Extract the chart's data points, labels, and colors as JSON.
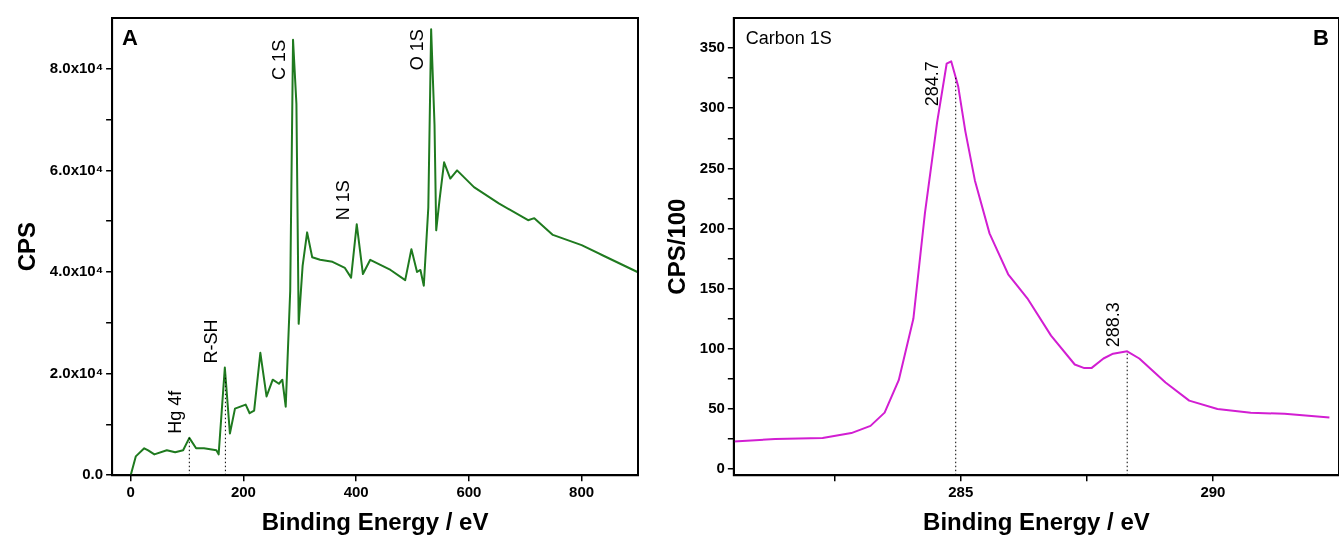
{
  "chart_data": [
    {
      "type": "line",
      "title": "A",
      "xlabel": "Binding Energy / eV",
      "ylabel": "CPS",
      "xlim": [
        -33,
        900
      ],
      "ylim": [
        0,
        90000
      ],
      "xticks": [
        0,
        200,
        400,
        600,
        800
      ],
      "yticks": [
        {
          "value": 0,
          "label": "0.0"
        },
        {
          "value": 10000,
          "label": null
        },
        {
          "value": 20000,
          "label": "2.0x10⁴"
        },
        {
          "value": 30000,
          "label": null
        },
        {
          "value": 40000,
          "label": "4.0x10⁴"
        },
        {
          "value": 50000,
          "label": null
        },
        {
          "value": 60000,
          "label": "6.0x10⁴"
        },
        {
          "value": 70000,
          "label": null
        },
        {
          "value": 80000,
          "label": "8.0x10⁴"
        }
      ],
      "series": [
        {
          "color": "#1f7a1f",
          "x": [
            0,
            9,
            24,
            31,
            42,
            64,
            79,
            93,
            104,
            116,
            130,
            152,
            156,
            167,
            176,
            185,
            204,
            211,
            219,
            230,
            241,
            252,
            263,
            269,
            275,
            283,
            288,
            294,
            298,
            305,
            313,
            322,
            336,
            358,
            380,
            391,
            401,
            412,
            425,
            461,
            487,
            498,
            508,
            514,
            520,
            528,
            533,
            539,
            542,
            548,
            556,
            567,
            579,
            609,
            653,
            705,
            716,
            749,
            800,
            837,
            899
          ],
          "values": [
            0,
            3700,
            5300,
            4900,
            4100,
            4900,
            4500,
            4900,
            7350,
            5300,
            5300,
            4900,
            4100,
            21200,
            8200,
            13100,
            13900,
            12200,
            12700,
            24100,
            15500,
            18800,
            18000,
            18800,
            13500,
            36300,
            85700,
            73100,
            29800,
            41200,
            47800,
            42900,
            42400,
            42000,
            40800,
            38900,
            49400,
            39600,
            42400,
            40400,
            38400,
            44500,
            40000,
            40400,
            37300,
            52700,
            87800,
            69000,
            48200,
            54300,
            61600,
            58400,
            60000,
            56700,
            53500,
            50200,
            50600,
            47300,
            45300,
            43300,
            40000
          ]
        }
      ],
      "annotations": [
        {
          "text": "Hg 4f",
          "x": 104,
          "y": 7350
        },
        {
          "text": "R-SH",
          "x": 167,
          "y": 21200
        },
        {
          "text": "C 1S",
          "x": 288,
          "y": 85700
        },
        {
          "text": "N 1S",
          "x": 401,
          "y": 49400
        },
        {
          "text": "O 1S",
          "x": 533,
          "y": 87800
        }
      ],
      "ref_lines": [
        {
          "axis": "x",
          "value": 104,
          "line_style": "dotted",
          "color": "#000000"
        },
        {
          "axis": "x",
          "value": 168,
          "line_style": "dotted",
          "color": "#000000"
        }
      ]
    },
    {
      "type": "line",
      "title": "B",
      "xlabel": "Binding Energy / eV",
      "ylabel": "CPS/100",
      "xlim": [
        280.5,
        292.5
      ],
      "ylim": [
        -5,
        375
      ],
      "xticks": [
        {
          "value": 282.5,
          "label": null
        },
        285,
        {
          "value": 287.5,
          "label": null
        },
        290
      ],
      "yticks": [
        0,
        {
          "value": 25,
          "label": null
        },
        50,
        {
          "value": 75,
          "label": null
        },
        100,
        {
          "value": 125,
          "label": null
        },
        150,
        {
          "value": 175,
          "label": null
        },
        200,
        {
          "value": 225,
          "label": null
        },
        250,
        {
          "value": 275,
          "label": null
        },
        300,
        {
          "value": 325,
          "label": null
        },
        350
      ],
      "series": [
        {
          "color": "#d21ed2",
          "x": [
            280.5,
            281.32,
            282.26,
            282.83,
            283.21,
            283.49,
            283.77,
            284.06,
            284.29,
            284.53,
            284.72,
            284.81,
            284.95,
            285.09,
            285.28,
            285.57,
            285.94,
            286.32,
            286.79,
            287.26,
            287.45,
            287.59,
            287.83,
            288.02,
            288.3,
            288.54,
            289.06,
            289.53,
            290.09,
            290.75,
            291.42,
            292.31
          ],
          "values": [
            23,
            25,
            26,
            30,
            36,
            47,
            74,
            125,
            213,
            288,
            337,
            339,
            318,
            281,
            240,
            196,
            162,
            142,
            111,
            87,
            84,
            84,
            92,
            96,
            98,
            92,
            72,
            57,
            50,
            47,
            46,
            43
          ]
        }
      ],
      "annotations": [
        "Carbon 1S",
        {
          "text": "284.7",
          "x": 284.7,
          "y": 339
        },
        {
          "text": "288.3",
          "x": 288.3,
          "y": 98
        }
      ],
      "ref_lines": [
        {
          "axis": "x",
          "value": 284.9,
          "line_style": "dotted",
          "color": "#000000"
        },
        {
          "axis": "x",
          "value": 288.3,
          "line_style": "dotted",
          "color": "#000000"
        }
      ]
    }
  ]
}
